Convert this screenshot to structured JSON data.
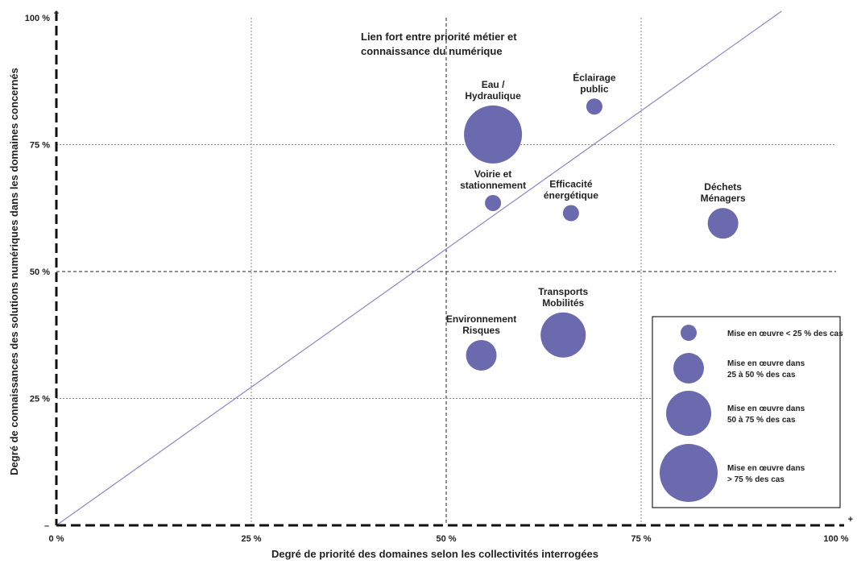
{
  "chart_data": {
    "type": "scatter",
    "title": "",
    "xlabel": "Degré de priorité des domaines selon les collectivités interrogées",
    "ylabel": "Degré de connaissances des solutions numériques dans les domaines concernés",
    "xlim": [
      0,
      100
    ],
    "ylim": [
      0,
      100
    ],
    "x_ticks": [
      {
        "value": 0,
        "label": "0 %"
      },
      {
        "value": 25,
        "label": "25 %"
      },
      {
        "value": 50,
        "label": "50 %"
      },
      {
        "value": 75,
        "label": "75 %"
      },
      {
        "value": 100,
        "label": "100 %"
      }
    ],
    "y_ticks": [
      {
        "value": 25,
        "label": "25 %"
      },
      {
        "value": 50,
        "label": "50 %"
      },
      {
        "value": 75,
        "label": "75 %"
      },
      {
        "value": 100,
        "label": "100 %"
      }
    ],
    "x_axis_end": {
      "minus": "–",
      "plus": "+"
    },
    "y_axis_end": {
      "minus": "–",
      "plus": "+"
    },
    "diagonal": true,
    "grid": true,
    "annotation": {
      "lines": [
        "Lien fort entre priorité métier et",
        "connaissance du numérique"
      ]
    },
    "points": [
      {
        "label_lines": [
          "Eau /",
          "Hydraulique"
        ],
        "x": 56,
        "y": 77,
        "size_class": 4
      },
      {
        "label_lines": [
          "Éclairage",
          "public"
        ],
        "x": 69,
        "y": 82.5,
        "size_class": 1
      },
      {
        "label_lines": [
          "Voirie et",
          "stationnement"
        ],
        "x": 56,
        "y": 63.5,
        "size_class": 1
      },
      {
        "label_lines": [
          "Efficacité",
          "énergétique"
        ],
        "x": 66,
        "y": 61.5,
        "size_class": 1
      },
      {
        "label_lines": [
          "Déchets",
          "Ménagers"
        ],
        "x": 85.5,
        "y": 59.5,
        "size_class": 2
      },
      {
        "label_lines": [
          "Transports",
          "Mobilités"
        ],
        "x": 65,
        "y": 37.5,
        "size_class": 3
      },
      {
        "label_lines": [
          "Environnement",
          "Risques"
        ],
        "x": 54.5,
        "y": 33.5,
        "size_class": 2
      }
    ],
    "legend": {
      "position": "bottom-right",
      "entries": [
        {
          "size_class": 1,
          "lines": [
            "Mise en œuvre < 25 % des cas"
          ]
        },
        {
          "size_class": 2,
          "lines": [
            "Mise en œuvre dans",
            "25 à 50 % des cas"
          ]
        },
        {
          "size_class": 3,
          "lines": [
            "Mise en œuvre dans",
            "50 à 75 % des cas"
          ]
        },
        {
          "size_class": 4,
          "lines": [
            "Mise en œuvre dans",
            "> 75 % des cas"
          ]
        }
      ]
    },
    "colors": {
      "bubble": "#6b6aae",
      "diagonal": "#8a89c4",
      "axis": "#111111",
      "grid": "#888888"
    }
  }
}
